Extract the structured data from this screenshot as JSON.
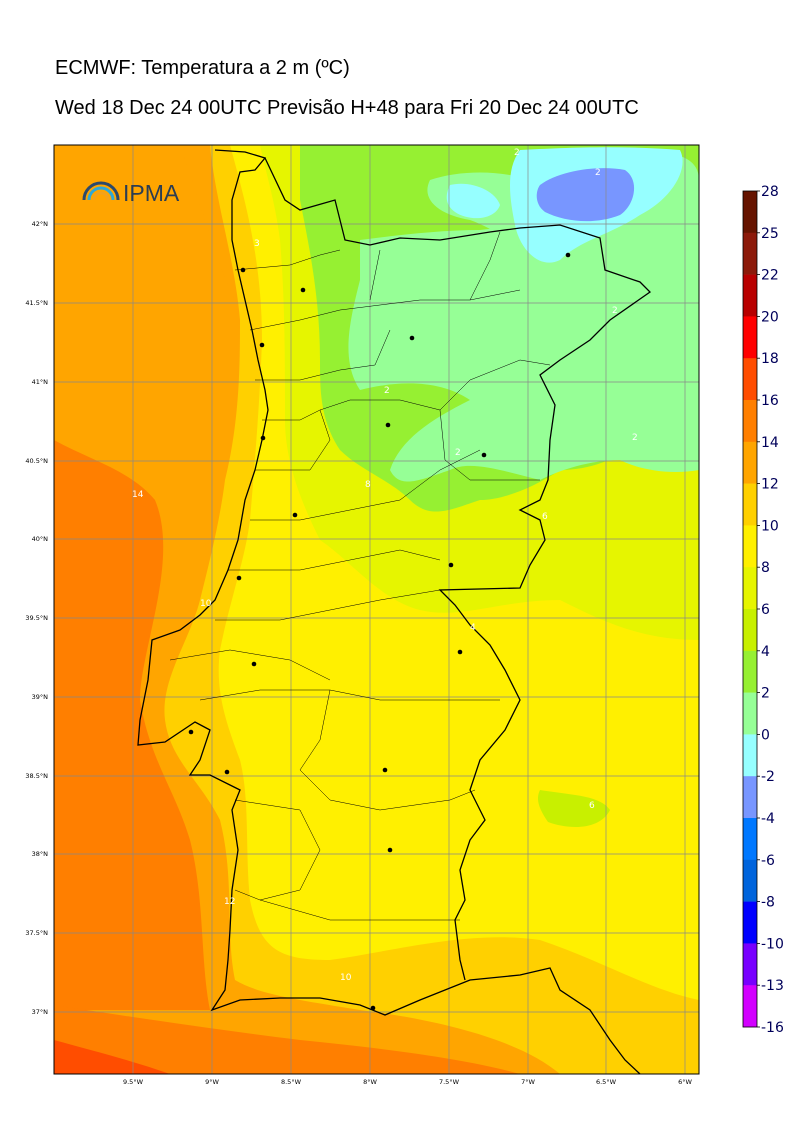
{
  "header": {
    "title": "ECMWF: Temperatura a 2 m (ºC)",
    "subtitle": "Wed 18 Dec 24 00UTC Previsão H+48 para Fri 20 Dec 24 00UTC"
  },
  "logo": {
    "text": "IPMA"
  },
  "axes": {
    "lat_labels": [
      "42°N",
      "41.5°N",
      "41°N",
      "40.5°N",
      "40°N",
      "39.5°N",
      "39°N",
      "38.5°N",
      "38°N",
      "37.5°N",
      "37°N"
    ],
    "lon_labels": [
      "9.5°W",
      "9°W",
      "8.5°W",
      "8°W",
      "7.5°W",
      "7°W",
      "6.5°W",
      "6°W"
    ]
  },
  "colorbar": {
    "labels": [
      "28",
      "25",
      "22",
      "20",
      "18",
      "16",
      "14",
      "12",
      "10",
      "8",
      "6",
      "4",
      "2",
      "0",
      "-2",
      "-4",
      "-6",
      "-8",
      "-10",
      "-13",
      "-16"
    ],
    "colors": [
      "#661400",
      "#8c1a0a",
      "#b80000",
      "#ff0000",
      "#ff4d00",
      "#ff7f00",
      "#ffa500",
      "#ffd000",
      "#fff000",
      "#e6f500",
      "#c8f000",
      "#96f032",
      "#96ff96",
      "#96ffff",
      "#7896ff",
      "#0078ff",
      "#0064dc",
      "#0000ff",
      "#7800ff",
      "#d200ff"
    ]
  },
  "contour_labels": [
    "2",
    "2",
    "3",
    "2",
    "2",
    "2",
    "2",
    "8",
    "6",
    "14",
    "10",
    "4",
    "6",
    "12",
    "10"
  ],
  "colors": {
    "sea_deep": "#ff7f00",
    "sea_mid": "#ffa500",
    "land_warm": "#fff000",
    "land_mild": "#e6f500",
    "land_cool": "#96f032",
    "land_cold": "#96ffff",
    "land_coldest": "#7896ff"
  }
}
